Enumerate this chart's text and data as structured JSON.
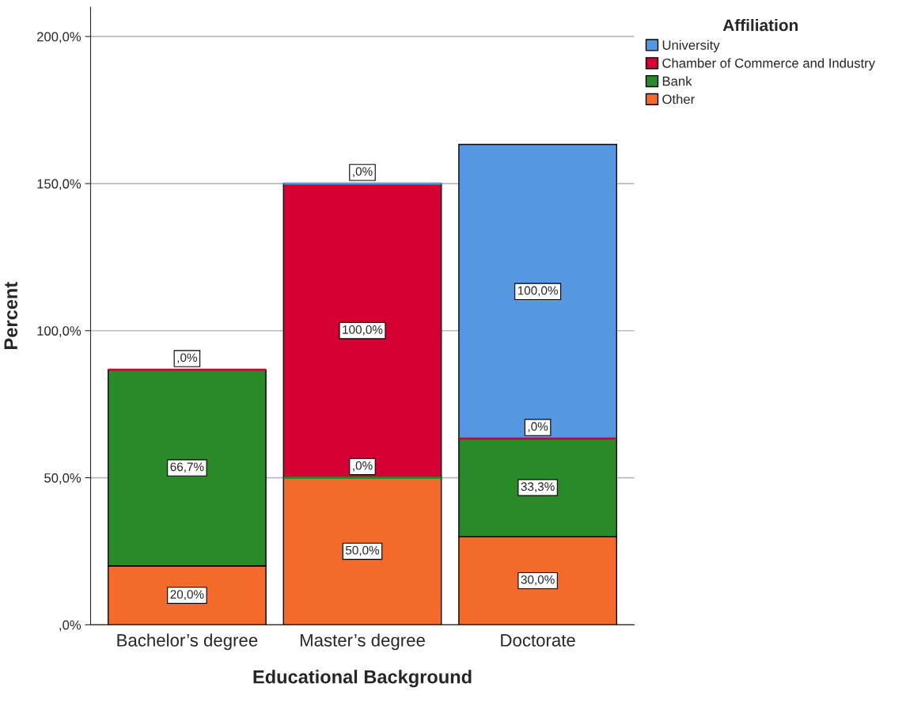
{
  "chart_data": {
    "type": "bar",
    "stacked": true,
    "xlabel": "Educational Background",
    "ylabel": "Percent",
    "legend_title": "Affiliation",
    "legend": "top right",
    "categories": [
      "Bachelor’s degree",
      "Master’s degree",
      "Doctorate"
    ],
    "series": [
      {
        "name": "Other",
        "color": "#f26b2a",
        "values": [
          20.0,
          50.0,
          30.0
        ],
        "value_labels": [
          "20,0%",
          "50,0%",
          "30,0%"
        ]
      },
      {
        "name": "Bank",
        "color": "#2a8a2a",
        "values": [
          66.7,
          0,
          33.3
        ],
        "value_labels": [
          "66,7%",
          ",0%",
          "33,3%"
        ]
      },
      {
        "name": "Chamber of Commerce and Industry",
        "color": "#d50032",
        "values": [
          0,
          100.0,
          0
        ],
        "value_labels": [
          ",0%",
          "100,0%",
          ",0%"
        ]
      },
      {
        "name": "University",
        "color": "#5597e0",
        "values": [
          null,
          0,
          100.0
        ],
        "value_labels": [
          null,
          ",0%",
          "100,0%"
        ]
      }
    ],
    "ylim": [
      0,
      210
    ],
    "yticks": [
      {
        "value": 0,
        "label": ",0%"
      },
      {
        "value": 50,
        "label": "50,0%"
      },
      {
        "value": 100,
        "label": "100,0%"
      },
      {
        "value": 150,
        "label": "150,0%"
      },
      {
        "value": 200,
        "label": "200,0%"
      }
    ],
    "grid": "y"
  }
}
